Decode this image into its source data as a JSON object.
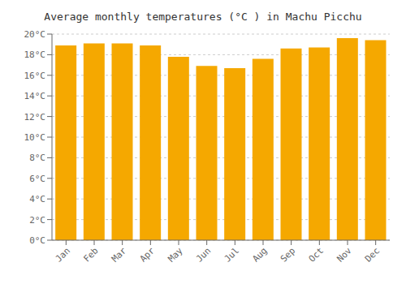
{
  "chart_data": {
    "type": "bar",
    "title": "Average monthly temperatures (°C ) in Machu Picchu",
    "categories": [
      "Jan",
      "Feb",
      "Mar",
      "Apr",
      "May",
      "Jun",
      "Jul",
      "Aug",
      "Sep",
      "Oct",
      "Nov",
      "Dec"
    ],
    "values": [
      18.9,
      19.1,
      19.1,
      18.9,
      17.8,
      16.9,
      16.7,
      17.6,
      18.6,
      18.7,
      19.6,
      19.4
    ],
    "color": "#F5A800",
    "ylim": [
      0,
      20
    ],
    "yticks": [
      {
        "value": 0,
        "label": "0°C"
      },
      {
        "value": 2,
        "label": "2°C"
      },
      {
        "value": 4,
        "label": "4°C"
      },
      {
        "value": 6,
        "label": "6°C"
      },
      {
        "value": 8,
        "label": "8°C"
      },
      {
        "value": 10,
        "label": "10°C"
      },
      {
        "value": 12,
        "label": "12°C"
      },
      {
        "value": 14,
        "label": "14°C"
      },
      {
        "value": 16,
        "label": "16°C"
      },
      {
        "value": 18,
        "label": "18°C"
      },
      {
        "value": 20,
        "label": "20°C"
      }
    ],
    "grid": true
  }
}
